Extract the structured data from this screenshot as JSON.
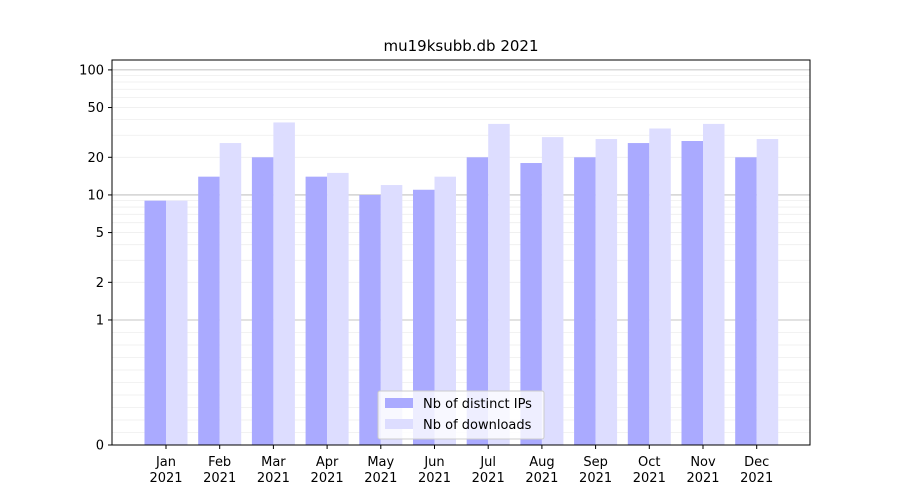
{
  "chart_data": {
    "type": "bar",
    "title": "mu19ksubb.db 2021",
    "xlabel": "",
    "ylabel": "",
    "yscale": "symlog",
    "ylim": [
      0,
      120
    ],
    "yticks": [
      0,
      1,
      2,
      5,
      10,
      20,
      50,
      100
    ],
    "grid": true,
    "legend_position": "bottom-center",
    "categories": [
      [
        "Jan",
        "2021"
      ],
      [
        "Feb",
        "2021"
      ],
      [
        "Mar",
        "2021"
      ],
      [
        "Apr",
        "2021"
      ],
      [
        "May",
        "2021"
      ],
      [
        "Jun",
        "2021"
      ],
      [
        "Jul",
        "2021"
      ],
      [
        "Aug",
        "2021"
      ],
      [
        "Sep",
        "2021"
      ],
      [
        "Oct",
        "2021"
      ],
      [
        "Nov",
        "2021"
      ],
      [
        "Dec",
        "2021"
      ]
    ],
    "series": [
      {
        "name": "Nb of distinct IPs",
        "color": "#aaaaff",
        "values": [
          9,
          14,
          20,
          14,
          10,
          11,
          20,
          18,
          20,
          26,
          27,
          20
        ]
      },
      {
        "name": "Nb of downloads",
        "color": "#ddddff",
        "values": [
          9,
          26,
          38,
          15,
          12,
          14,
          37,
          29,
          28,
          34,
          37,
          28
        ]
      }
    ]
  }
}
